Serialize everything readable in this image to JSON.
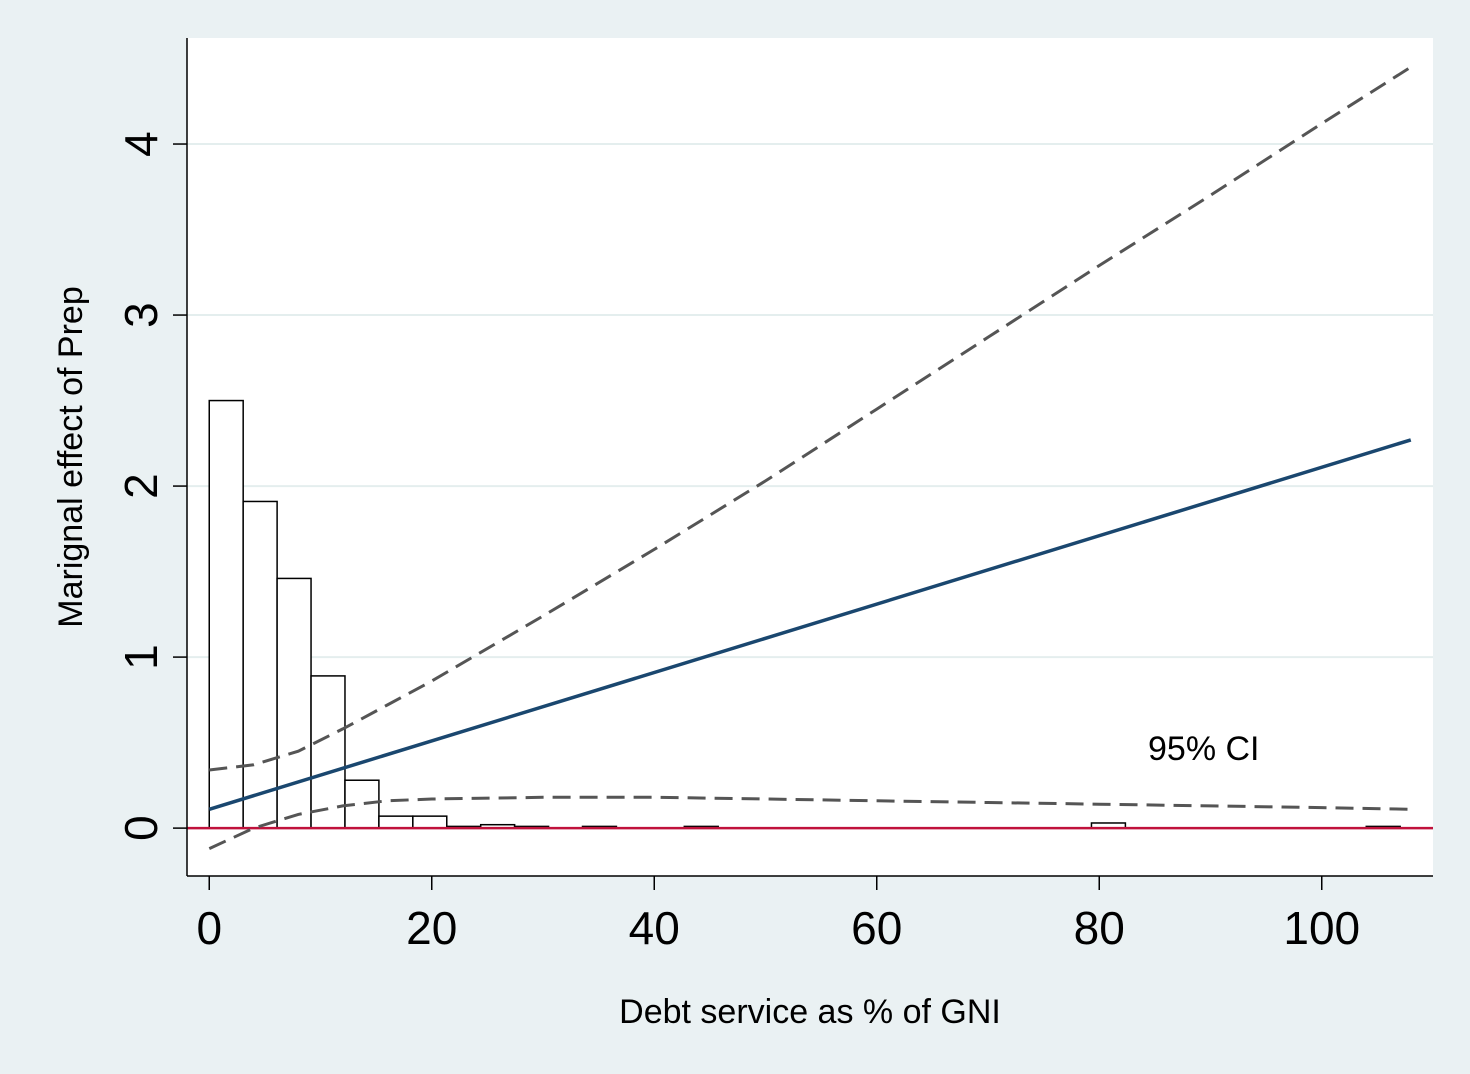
{
  "chart_data": {
    "type": "line",
    "xlabel": "Debt service as % of GNI",
    "ylabel": "Marignal effect of Prep",
    "xlim": [
      -2,
      110
    ],
    "ylim": [
      -0.28,
      4.62
    ],
    "x_ticks": [
      0,
      20,
      40,
      60,
      80,
      100
    ],
    "y_ticks": [
      0,
      1,
      2,
      3,
      4
    ],
    "grid": "horizontal",
    "annotation": "95% CI",
    "colors": {
      "background": "#eaf1f3",
      "plot_area": "#ffffff",
      "marginal_effect": "#1a476f",
      "ci": "#555555",
      "zero_line": "#c0123c",
      "grid": "#e4eeee"
    },
    "series": [
      {
        "role": "marginal_effect",
        "style": "solid",
        "x": [
          0,
          108
        ],
        "y": [
          0.11,
          2.27
        ]
      },
      {
        "role": "ci_upper",
        "style": "dashed",
        "x": [
          0,
          4,
          8,
          12,
          16,
          20,
          30,
          40,
          50,
          60,
          70,
          80,
          90,
          100,
          108
        ],
        "y": [
          0.34,
          0.37,
          0.45,
          0.58,
          0.72,
          0.86,
          1.24,
          1.63,
          2.03,
          2.45,
          2.87,
          3.29,
          3.7,
          4.12,
          4.45
        ]
      },
      {
        "role": "ci_lower",
        "style": "dashed",
        "x": [
          0,
          4,
          8,
          12,
          16,
          20,
          30,
          40,
          50,
          60,
          70,
          80,
          90,
          100,
          108
        ],
        "y": [
          -0.12,
          0.0,
          0.08,
          0.13,
          0.16,
          0.17,
          0.18,
          0.18,
          0.17,
          0.16,
          0.15,
          0.14,
          0.13,
          0.12,
          0.11
        ]
      }
    ],
    "histogram": {
      "bin_width": 3.05,
      "bin_starts": [
        0,
        3.05,
        6.1,
        9.15,
        12.2,
        15.25,
        18.3,
        21.35,
        24.4,
        27.45,
        33.55,
        42.7,
        79.3,
        104.0
      ],
      "heights": [
        2.5,
        1.91,
        1.46,
        0.89,
        0.28,
        0.07,
        0.07,
        0.01,
        0.02,
        0.01,
        0.01,
        0.01,
        0.03,
        0.01
      ]
    }
  }
}
